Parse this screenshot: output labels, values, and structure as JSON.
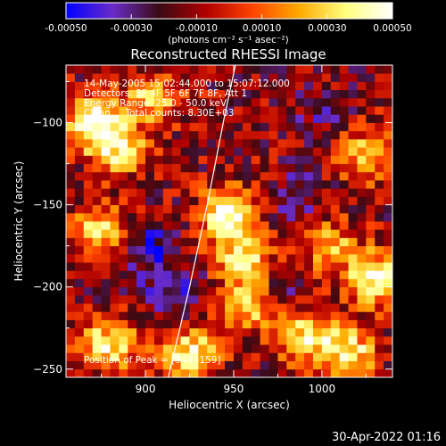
{
  "chart_data": {
    "type": "heatmap",
    "title": "Reconstructed RHESSI Image",
    "xlabel": "Heliocentric X (arcsec)",
    "ylabel": "Heliocentric Y (arcsec)",
    "xlim": [
      855,
      1040
    ],
    "ylim": [
      -255,
      -65
    ],
    "x_ticks": [
      900,
      950,
      1000
    ],
    "y_ticks": [
      -100,
      -150,
      -200,
      -250
    ],
    "colorbar": {
      "min": -0.0005,
      "max": 0.0005,
      "tick_values": [
        -0.0005,
        -0.0003,
        -0.0001,
        0.0001,
        0.0003,
        0.0005
      ],
      "tick_labels": [
        "-0.00050",
        "-0.00030",
        "-0.00010",
        "0.00010",
        "0.00030",
        "0.00050"
      ],
      "unit_label": "(photons cm⁻² s⁻¹ asec⁻²)",
      "colors": [
        "#0000ff",
        "#6a2cc8",
        "#3a0a14",
        "#b00000",
        "#ff4400",
        "#ffaa00",
        "#ffff80",
        "#ffffff"
      ]
    },
    "annotations": {
      "time_range": "14-May-2005 15:02:44.000 to 15:07:12.000",
      "detectors": "Detectors: 3F 4F 5F 6F 7F 8F, Att 1",
      "energy_range": "Energy Range: 25.0 - 50.0 keV",
      "clean_info": "Clean     Total counts: 8.30E+03",
      "peak_position": "Position of Peak = [948,-159]"
    },
    "peak": [
      948,
      -159
    ],
    "limb_curve": [
      [
        913,
        -255
      ],
      [
        925,
        -200
      ],
      [
        935,
        -150
      ],
      [
        945,
        -95
      ],
      [
        952,
        -60
      ]
    ],
    "hotspots": [
      {
        "x": 870,
        "y": -100,
        "amplitude": 0.00045
      },
      {
        "x": 885,
        "y": -115,
        "amplitude": 0.00035
      },
      {
        "x": 948,
        "y": -155,
        "amplitude": 0.0005
      },
      {
        "x": 955,
        "y": -180,
        "amplitude": 0.00035
      },
      {
        "x": 960,
        "y": -210,
        "amplitude": 0.00035
      },
      {
        "x": 1025,
        "y": -120,
        "amplitude": 0.0003
      },
      {
        "x": 1030,
        "y": -195,
        "amplitude": 0.00045
      },
      {
        "x": 990,
        "y": -230,
        "amplitude": 0.00035
      },
      {
        "x": 1015,
        "y": -240,
        "amplitude": 0.0004
      },
      {
        "x": 880,
        "y": -235,
        "amplitude": 0.0004
      },
      {
        "x": 925,
        "y": -240,
        "amplitude": 0.0004
      },
      {
        "x": 875,
        "y": -165,
        "amplitude": 0.0003
      },
      {
        "x": 905,
        "y": -85,
        "amplitude": 0.0003
      },
      {
        "x": 1005,
        "y": -175,
        "amplitude": 0.00025
      }
    ],
    "coldspots": [
      {
        "x": 900,
        "y": -175,
        "amplitude": -0.0004
      },
      {
        "x": 915,
        "y": -200,
        "amplitude": -0.00035
      },
      {
        "x": 985,
        "y": -145,
        "amplitude": -0.0003
      },
      {
        "x": 1000,
        "y": -95,
        "amplitude": -0.00025
      },
      {
        "x": 975,
        "y": -205,
        "amplitude": -0.0003
      }
    ]
  },
  "footer": {
    "timestamp": "30-Apr-2022 01:16"
  }
}
